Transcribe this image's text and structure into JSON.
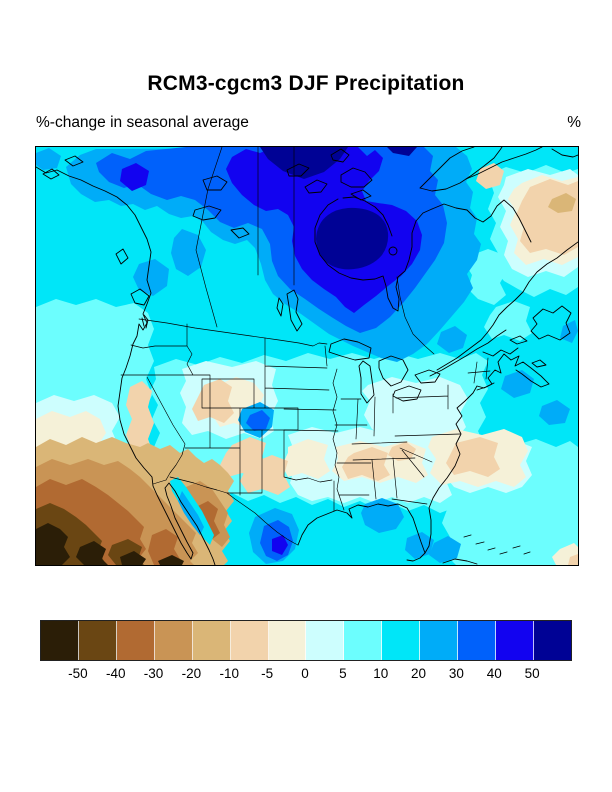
{
  "figure": {
    "title": "RCM3-cgcm3 DJF Precipitation",
    "subtitle": "%-change in seasonal average",
    "unit": "%"
  },
  "map": {
    "type": "filled-contour-map",
    "region": "North America with US state and Canadian province borders, coastlines and Great Lakes",
    "frame_color": "#000000",
    "coastline_color": "#000000"
  },
  "colorbar": {
    "tick_labels": [
      "-50",
      "-40",
      "-30",
      "-20",
      "-10",
      "-5",
      "0",
      "5",
      "10",
      "20",
      "30",
      "40",
      "50"
    ],
    "colors": [
      "#2b1e07",
      "#6a4613",
      "#b16a32",
      "#c99455",
      "#dab677",
      "#f2d3ac",
      "#f5f1d8",
      "#cdfefe",
      "#6cfefe",
      "#00e6f8",
      "#00acf8",
      "#0061fb",
      "#1203f0",
      "#000295"
    ]
  }
}
